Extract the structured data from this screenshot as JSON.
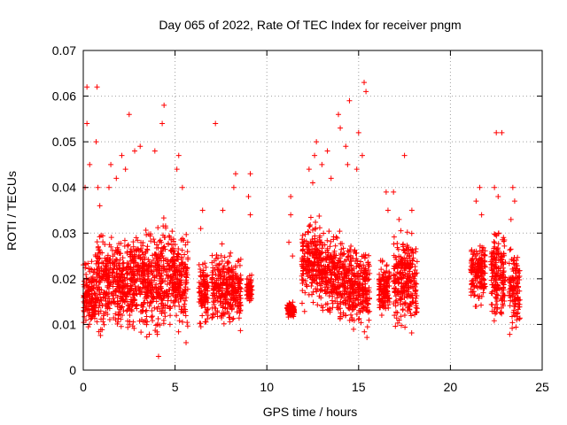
{
  "chart_data": {
    "type": "scatter",
    "title": "Day 065 of 2022, Rate Of TEC Index for receiver pngm",
    "xlabel": "GPS time / hours",
    "ylabel": "ROTI / TECUs",
    "xlim": [
      0,
      25
    ],
    "ylim": [
      0,
      0.07
    ],
    "x_ticks": [
      0,
      5,
      10,
      15,
      20,
      25
    ],
    "y_ticks": [
      0,
      0.01,
      0.02,
      0.03,
      0.04,
      0.05,
      0.06,
      0.07
    ],
    "x_tick_labels": [
      "0",
      "5",
      "10",
      "15",
      "20",
      "25"
    ],
    "y_tick_labels": [
      "0",
      "0.01",
      "0.02",
      "0.03",
      "0.04",
      "0.05",
      "0.06",
      "0.07"
    ],
    "grid": true,
    "marker": "+",
    "series_color": "#ff0000",
    "clusters": [
      {
        "x_range": [
          0.0,
          0.6
        ],
        "y_low": 0.007,
        "y_high": 0.025,
        "outliers": [
          [
            0.2,
            0.062
          ],
          [
            0.2,
            0.054
          ],
          [
            0.35,
            0.045
          ],
          [
            0.1,
            0.04
          ]
        ]
      },
      {
        "x_range": [
          0.6,
          1.1
        ],
        "y_low": 0.005,
        "y_high": 0.033,
        "outliers": [
          [
            0.75,
            0.062
          ],
          [
            0.7,
            0.05
          ],
          [
            0.8,
            0.04
          ],
          [
            0.9,
            0.036
          ]
        ]
      },
      {
        "x_range": [
          1.1,
          2.2
        ],
        "y_low": 0.007,
        "y_high": 0.03,
        "outliers": [
          [
            1.5,
            0.045
          ],
          [
            1.8,
            0.042
          ],
          [
            2.1,
            0.047
          ],
          [
            1.4,
            0.04
          ]
        ]
      },
      {
        "x_range": [
          2.2,
          3.4
        ],
        "y_low": 0.006,
        "y_high": 0.032,
        "outliers": [
          [
            2.5,
            0.056
          ],
          [
            3.1,
            0.049
          ],
          [
            2.8,
            0.048
          ],
          [
            2.3,
            0.044
          ]
        ]
      },
      {
        "x_range": [
          3.4,
          4.6
        ],
        "y_low": 0.005,
        "y_high": 0.033,
        "outliers": [
          [
            4.4,
            0.058
          ],
          [
            4.3,
            0.054
          ],
          [
            3.9,
            0.048
          ],
          [
            4.1,
            0.003
          ]
        ]
      },
      {
        "x_range": [
          4.6,
          5.7
        ],
        "y_low": 0.007,
        "y_high": 0.032,
        "outliers": [
          [
            5.2,
            0.047
          ],
          [
            5.1,
            0.044
          ],
          [
            5.4,
            0.04
          ],
          [
            5.6,
            0.006
          ]
        ]
      },
      {
        "x_range": [
          6.3,
          6.8
        ],
        "y_low": 0.008,
        "y_high": 0.025,
        "outliers": [
          [
            6.5,
            0.035
          ],
          [
            6.4,
            0.031
          ]
        ]
      },
      {
        "x_range": [
          7.0,
          8.0
        ],
        "y_low": 0.008,
        "y_high": 0.027,
        "outliers": [
          [
            7.2,
            0.054
          ],
          [
            7.6,
            0.035
          ]
        ]
      },
      {
        "x_range": [
          8.0,
          8.6
        ],
        "y_low": 0.008,
        "y_high": 0.026,
        "outliers": [
          [
            8.3,
            0.043
          ],
          [
            8.2,
            0.04
          ]
        ]
      },
      {
        "x_range": [
          8.9,
          9.2
        ],
        "y_low": 0.014,
        "y_high": 0.021,
        "outliers": [
          [
            9.1,
            0.043
          ],
          [
            9.0,
            0.038
          ],
          [
            9.1,
            0.034
          ]
        ]
      },
      {
        "x_range": [
          11.1,
          11.5
        ],
        "y_low": 0.011,
        "y_high": 0.015,
        "outliers": [
          [
            11.3,
            0.038
          ],
          [
            11.3,
            0.034
          ],
          [
            11.2,
            0.028
          ],
          [
            11.4,
            0.025
          ]
        ]
      },
      {
        "x_range": [
          11.9,
          12.9
        ],
        "y_low": 0.012,
        "y_high": 0.034,
        "outliers": [
          [
            12.7,
            0.05
          ],
          [
            12.6,
            0.047
          ],
          [
            12.3,
            0.044
          ],
          [
            12.5,
            0.041
          ]
        ]
      },
      {
        "x_range": [
          12.9,
          13.8
        ],
        "y_low": 0.01,
        "y_high": 0.032,
        "outliers": [
          [
            13.3,
            0.048
          ],
          [
            13.0,
            0.045
          ],
          [
            13.5,
            0.042
          ]
        ]
      },
      {
        "x_range": [
          13.8,
          14.6
        ],
        "y_low": 0.007,
        "y_high": 0.031,
        "outliers": [
          [
            13.9,
            0.056
          ],
          [
            14.0,
            0.053
          ],
          [
            14.5,
            0.059
          ],
          [
            14.3,
            0.049
          ],
          [
            14.4,
            0.045
          ]
        ]
      },
      {
        "x_range": [
          14.6,
          15.6
        ],
        "y_low": 0.006,
        "y_high": 0.028,
        "outliers": [
          [
            15.3,
            0.063
          ],
          [
            15.4,
            0.061
          ],
          [
            15.0,
            0.052
          ],
          [
            15.2,
            0.047
          ],
          [
            14.9,
            0.044
          ]
        ]
      },
      {
        "x_range": [
          16.1,
          16.7
        ],
        "y_low": 0.01,
        "y_high": 0.025,
        "outliers": [
          [
            16.5,
            0.039
          ],
          [
            16.6,
            0.035
          ],
          [
            16.2,
            0.024
          ],
          [
            16.3,
            0.024
          ]
        ]
      },
      {
        "x_range": [
          16.9,
          18.2
        ],
        "y_low": 0.007,
        "y_high": 0.031,
        "outliers": [
          [
            17.5,
            0.047
          ],
          [
            16.9,
            0.039
          ],
          [
            17.9,
            0.035
          ],
          [
            17.2,
            0.033
          ]
        ]
      },
      {
        "x_range": [
          21.1,
          21.9
        ],
        "y_low": 0.012,
        "y_high": 0.03,
        "outliers": [
          [
            21.6,
            0.04
          ],
          [
            21.4,
            0.037
          ],
          [
            21.7,
            0.034
          ]
        ]
      },
      {
        "x_range": [
          22.2,
          23.0
        ],
        "y_low": 0.008,
        "y_high": 0.032,
        "outliers": [
          [
            22.5,
            0.052
          ],
          [
            22.8,
            0.052
          ],
          [
            22.4,
            0.04
          ],
          [
            22.6,
            0.038
          ]
        ]
      },
      {
        "x_range": [
          23.2,
          23.8
        ],
        "y_low": 0.006,
        "y_high": 0.028,
        "outliers": [
          [
            23.4,
            0.04
          ],
          [
            23.5,
            0.037
          ],
          [
            23.3,
            0.033
          ]
        ]
      }
    ]
  }
}
